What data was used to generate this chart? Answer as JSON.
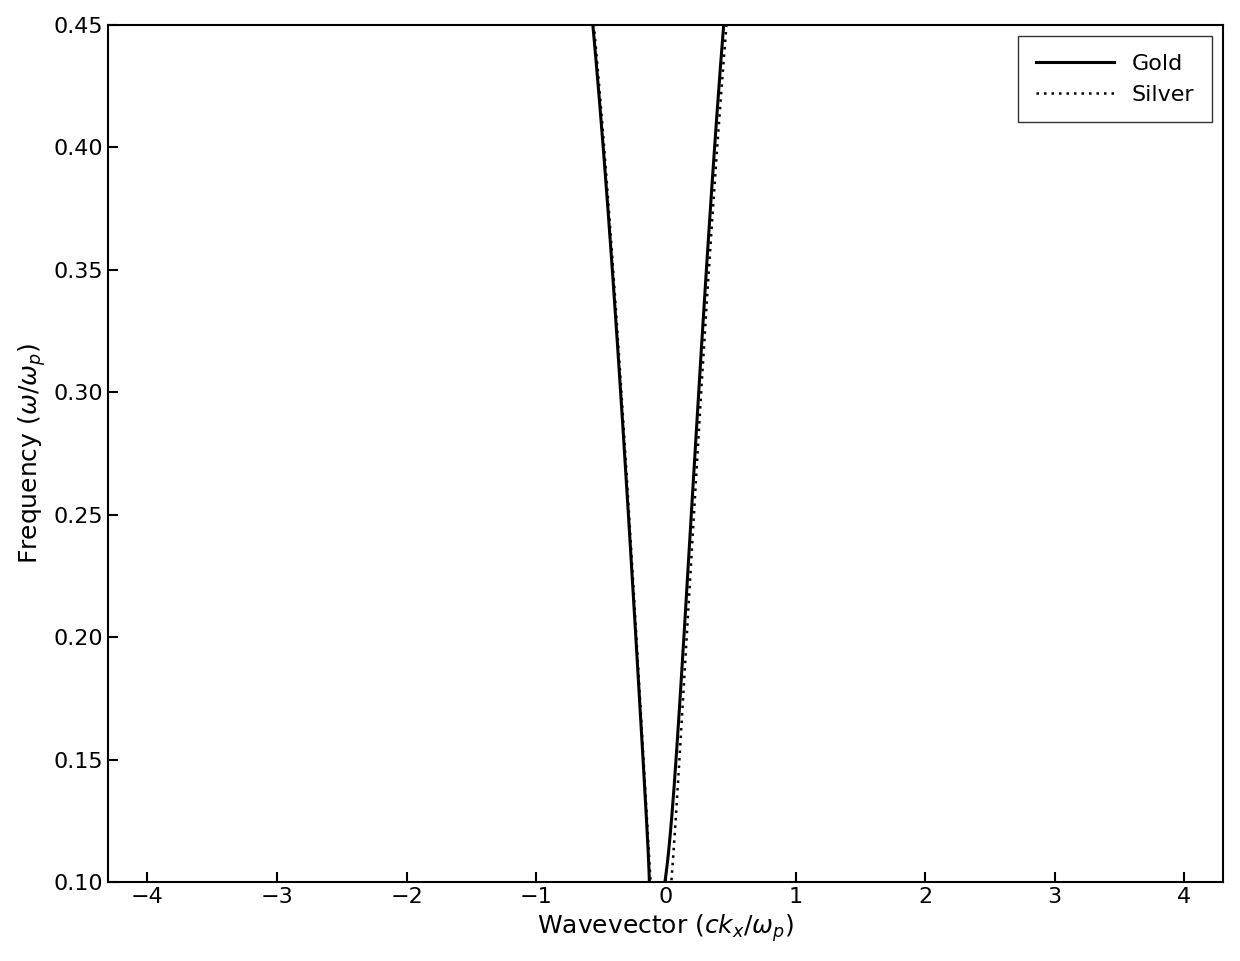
{
  "xlabel": "Wavevector ($ck_x/\\omega_p$)",
  "ylabel": "Frequency ($\\omega/\\omega_p$)",
  "xlim": [
    -4.3,
    4.3
  ],
  "ylim": [
    0.1,
    0.45
  ],
  "xticks": [
    -4,
    -3,
    -2,
    -1,
    0,
    1,
    2,
    3,
    4
  ],
  "yticks": [
    0.1,
    0.15,
    0.2,
    0.25,
    0.3,
    0.35,
    0.4,
    0.45
  ],
  "gold_color": "#000000",
  "silver_color": "#000000",
  "background_color": "#ffffff",
  "legend_loc": "upper right",
  "linewidth_gold": 2.2,
  "linewidth_silver": 1.8,
  "dotsize_silver": 3.5,
  "fontsize_labels": 18,
  "fontsize_ticks": 16,
  "fontsize_legend": 16,
  "dpi": 100,
  "figsize": [
    12.4,
    9.61
  ],
  "omega_sp": 0.3629,
  "omega_c_gold": 0.08,
  "omega_c_silver": 0.06,
  "eps_b_gold": 1.0,
  "eps_b_silver": 1.0,
  "n_omega": 2000
}
